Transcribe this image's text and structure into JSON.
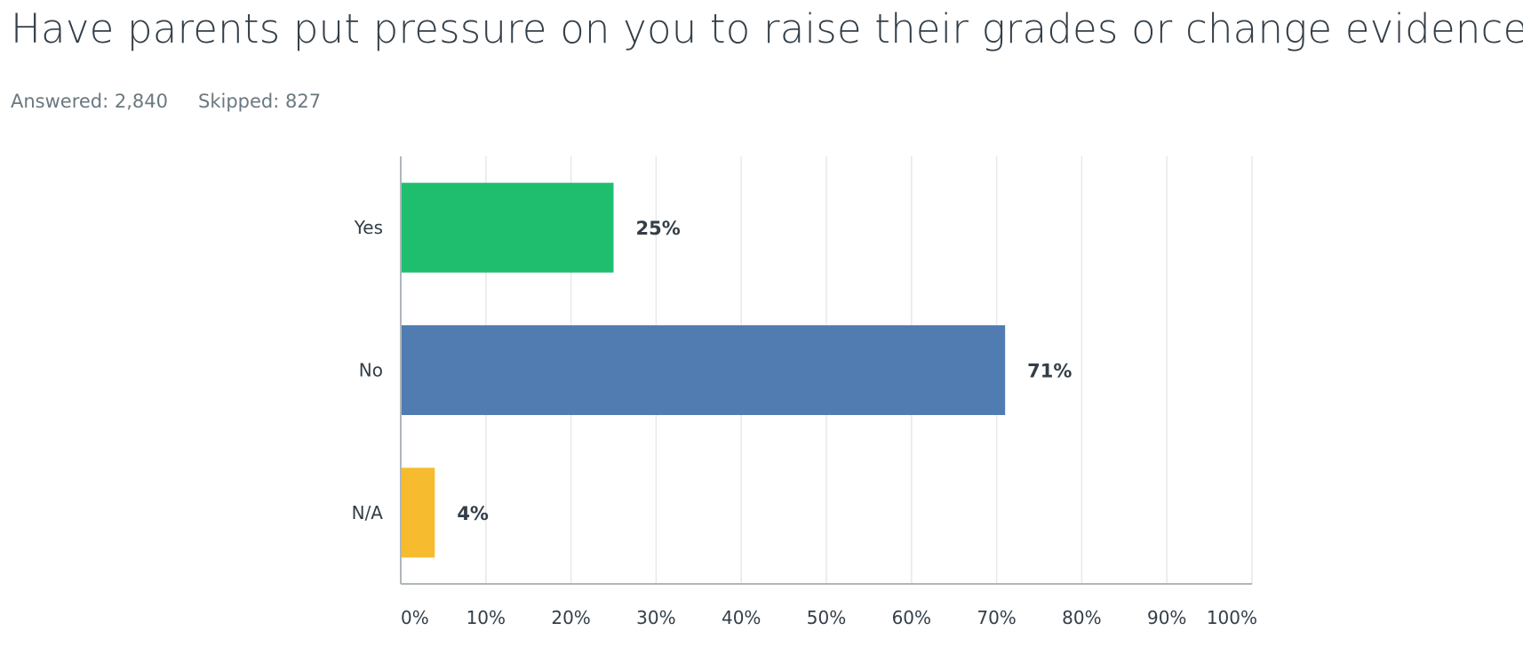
{
  "question": {
    "title": "Have parents put pressure on you to raise their grades or change evidence?",
    "answered_label": "Answered: 2,840",
    "skipped_label": "Skipped: 827"
  },
  "colors": {
    "Yes": "#1fbe6f",
    "No": "#507cb2",
    "N/A": "#f6bb2f",
    "grid": "#e6e8ea",
    "axis": "#b0b6ba"
  },
  "chart_data": {
    "type": "bar",
    "orientation": "horizontal",
    "categories": [
      "Yes",
      "No",
      "N/A"
    ],
    "values": [
      25,
      71,
      4
    ],
    "value_labels": [
      "25%",
      "71%",
      "4%"
    ],
    "xlim": [
      0,
      100
    ],
    "x_ticks": [
      "0%",
      "10%",
      "20%",
      "30%",
      "40%",
      "50%",
      "60%",
      "70%",
      "80%",
      "90%",
      "100%"
    ],
    "grid": true
  }
}
